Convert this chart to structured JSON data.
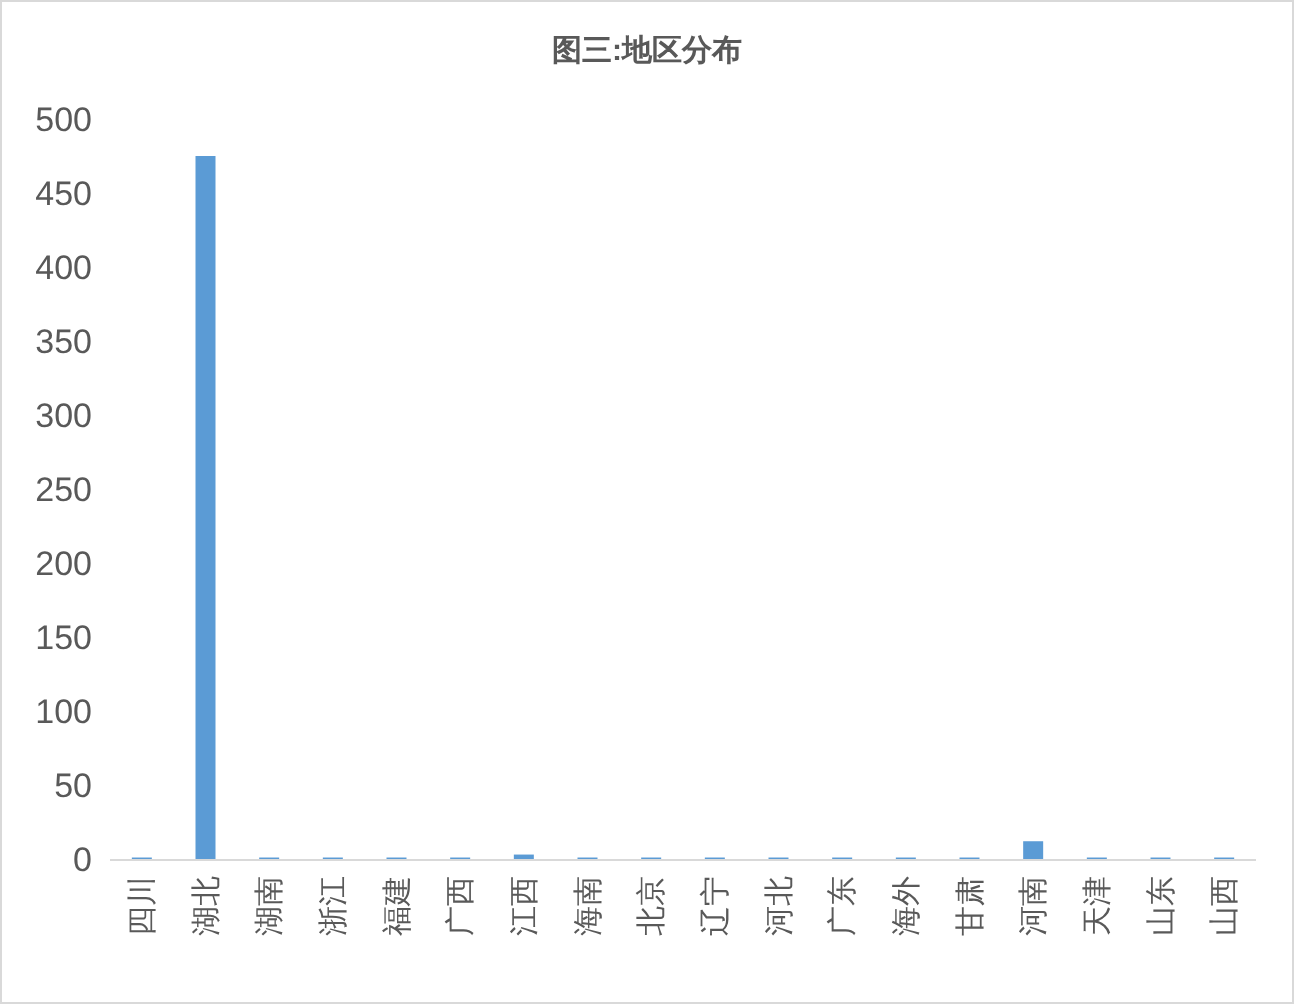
{
  "chart_data": {
    "type": "bar",
    "title": "图三:地区分布",
    "categories": [
      "四川",
      "湖北",
      "湖南",
      "浙江",
      "福建",
      "广西",
      "江西",
      "海南",
      "北京",
      "辽宁",
      "河北",
      "广东",
      "海外",
      "甘肃",
      "河南",
      "天津",
      "山东",
      "山西"
    ],
    "values": [
      1,
      475,
      1,
      1,
      1,
      1,
      3,
      1,
      1,
      1,
      1,
      1,
      1,
      1,
      12,
      1,
      1,
      1
    ],
    "color": "#5b9bd5",
    "ylim": [
      0,
      500
    ],
    "yticks": [
      0,
      50,
      100,
      150,
      200,
      250,
      300,
      350,
      400,
      450,
      500
    ],
    "grid": false
  }
}
